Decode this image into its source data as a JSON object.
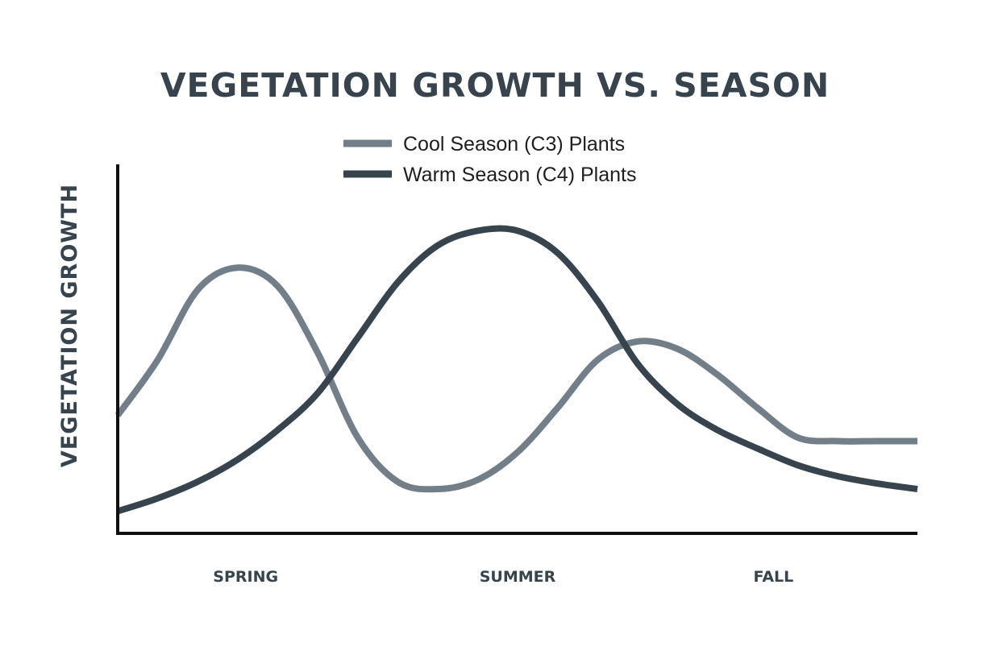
{
  "chart_data": {
    "type": "line",
    "title": "VEGETATION GROWTH VS. SEASON",
    "xlabel": "",
    "ylabel": "VEGETATION GROWTH",
    "categories": [
      "SPRING",
      "SUMMER",
      "FALL"
    ],
    "x": [
      0,
      0.5,
      1,
      1.5,
      2,
      2.5,
      3,
      3.5,
      4,
      4.5,
      5,
      5.5,
      6,
      6.5,
      7,
      7.5,
      8,
      8.5,
      9,
      9.5,
      10
    ],
    "category_positions": [
      1.6,
      5,
      8.2
    ],
    "xlim": [
      0,
      10
    ],
    "ylim": [
      0,
      10
    ],
    "grid": false,
    "legend_position": "top-center",
    "series": [
      {
        "name": "Cool Season (C3) Plants",
        "color": "#727f88",
        "values": [
          3.2,
          4.7,
          6.6,
          7.2,
          6.7,
          4.9,
          2.6,
          1.4,
          1.2,
          1.45,
          2.2,
          3.4,
          4.7,
          5.2,
          5.0,
          4.3,
          3.4,
          2.6,
          2.5,
          2.5,
          2.5
        ]
      },
      {
        "name": "Warm Season (C4) Plants",
        "color": "#37444d",
        "values": [
          0.6,
          0.95,
          1.4,
          2.0,
          2.8,
          3.8,
          5.3,
          6.8,
          7.8,
          8.2,
          8.2,
          7.6,
          6.3,
          4.6,
          3.5,
          2.8,
          2.3,
          1.85,
          1.55,
          1.35,
          1.2
        ]
      }
    ]
  }
}
